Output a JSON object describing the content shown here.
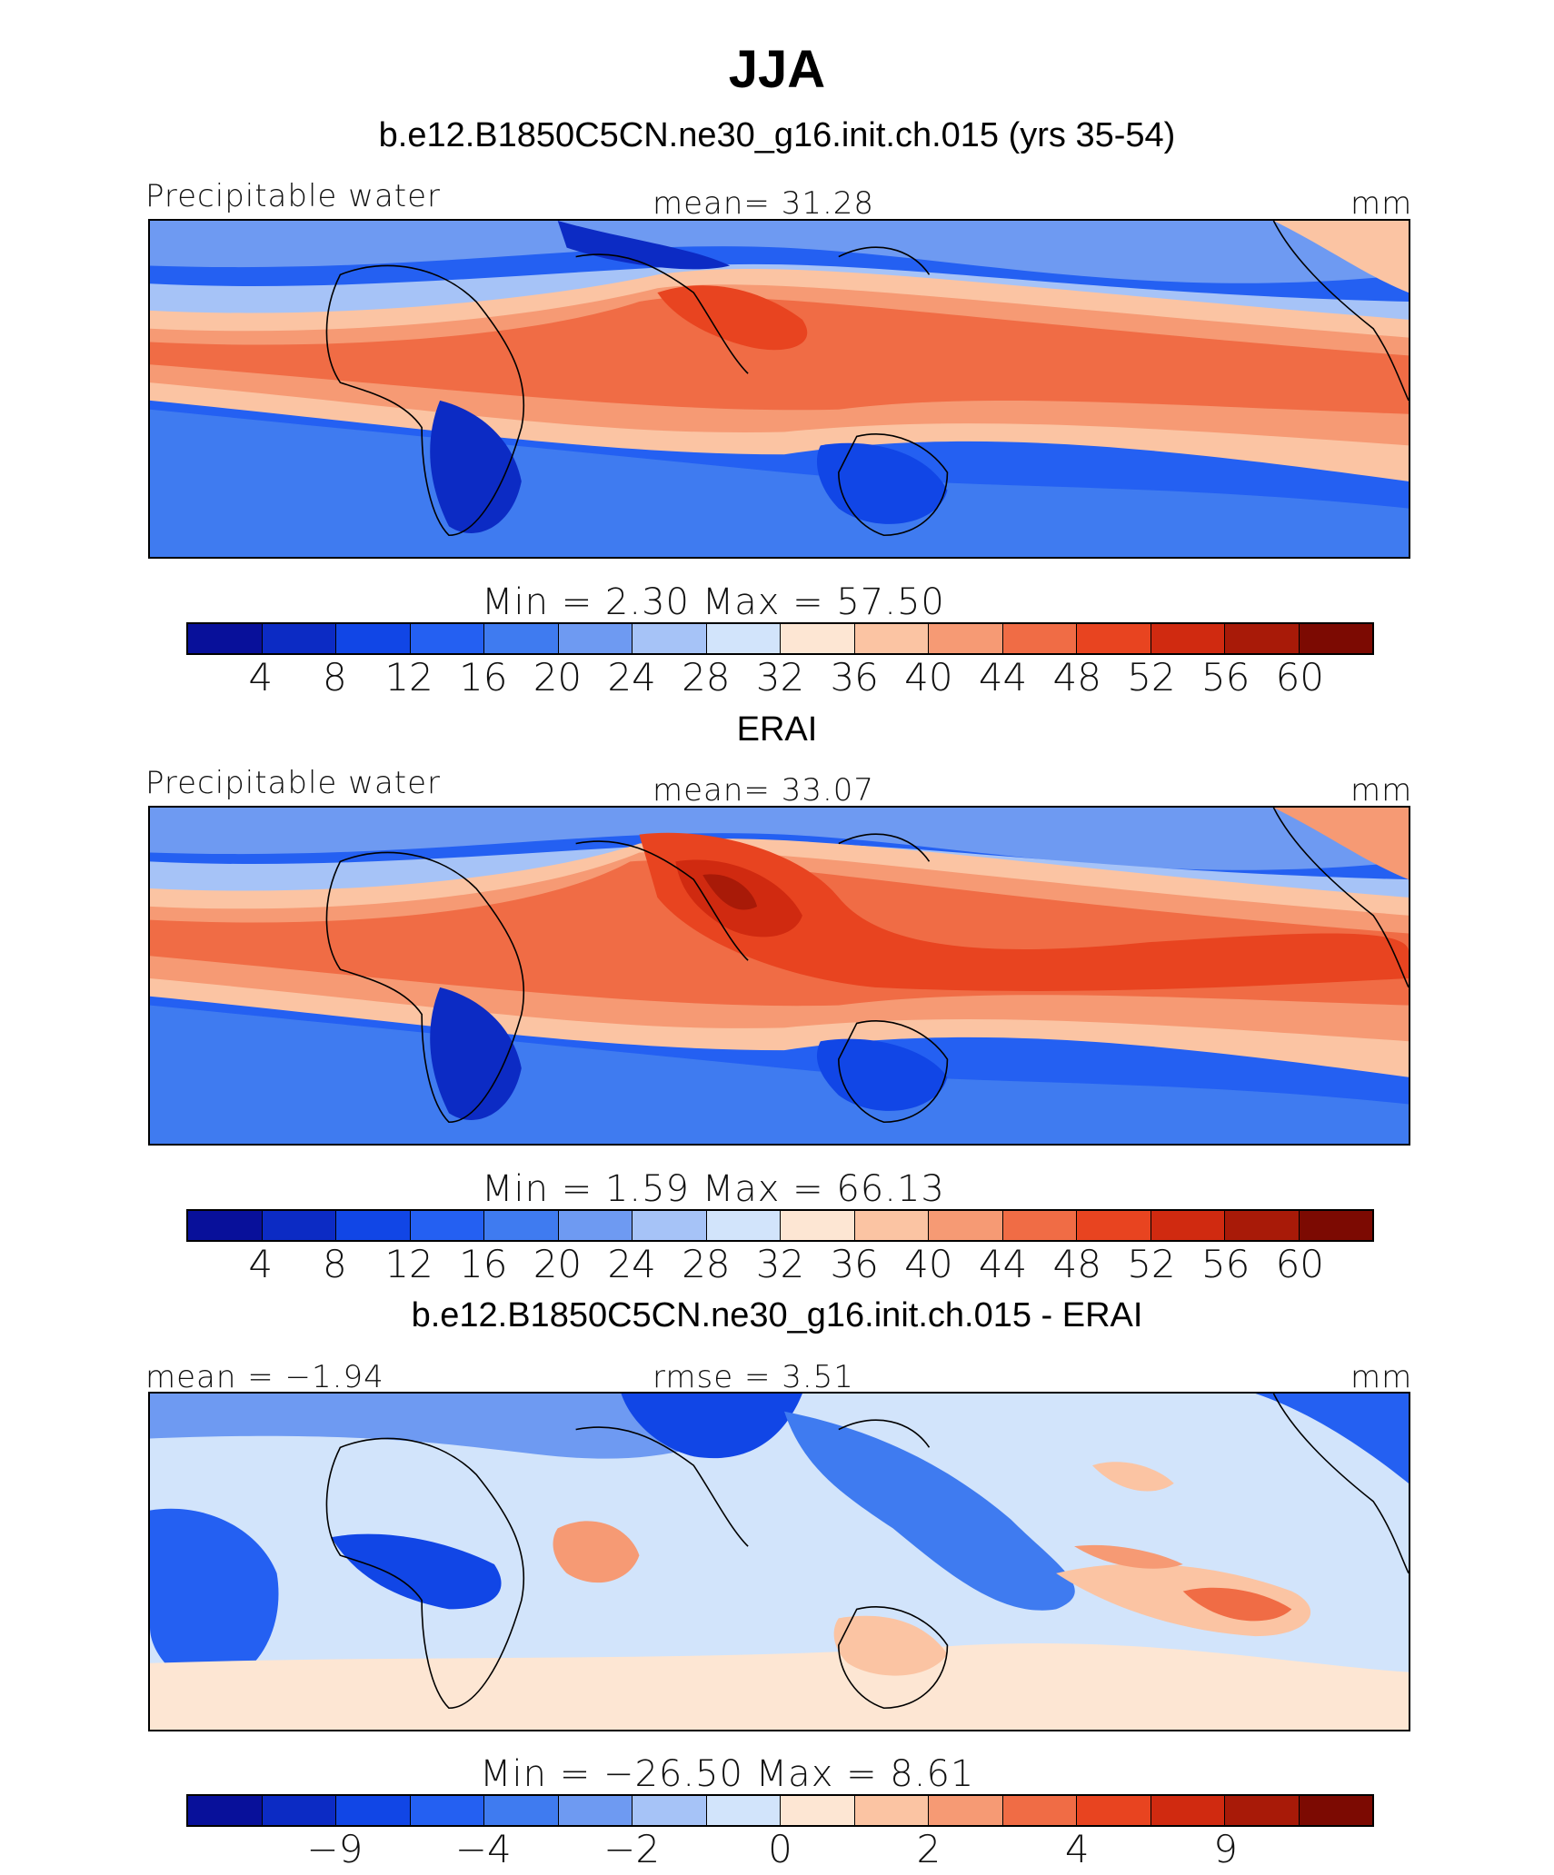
{
  "title": "JJA",
  "palette": [
    "#08109a",
    "#0c2bc4",
    "#1146e6",
    "#2460f2",
    "#3f7bf0",
    "#6e9af2",
    "#a6c3f7",
    "#d2e4fb",
    "#fde6d3",
    "#fbc4a3",
    "#f69a74",
    "#f06c45",
    "#e84420",
    "#d02a10",
    "#a81a08",
    "#7c0a02"
  ],
  "panels": [
    {
      "title": "b.e12.B1850C5CN.ne30_g16.init.ch.015 (yrs 35-54)",
      "left_label": "Precipitable  water",
      "center_label": "mean=   31.28",
      "units": "mm",
      "min_max": "Min  =      2.30  Max  =    57.50",
      "tick_labels": [
        "4",
        "8",
        "12",
        "16",
        "20",
        "24",
        "28",
        "32",
        "36",
        "40",
        "44",
        "48",
        "52",
        "56",
        "60"
      ]
    },
    {
      "title": "ERAI",
      "left_label": "Precipitable  water",
      "center_label": "mean=   33.07",
      "units": "mm",
      "min_max": "Min  =      1.59  Max  =    66.13",
      "tick_labels": [
        "4",
        "8",
        "12",
        "16",
        "20",
        "24",
        "28",
        "32",
        "36",
        "40",
        "44",
        "48",
        "52",
        "56",
        "60"
      ]
    },
    {
      "title": "b.e12.B1850C5CN.ne30_g16.init.ch.015 - ERAI",
      "left_label": "mean  =   −1.94",
      "center_label": "rmse  =     3.51",
      "units": "mm",
      "min_max": "Min  =  −26.50  Max  =     8.61",
      "tick_labels": [
        "−9",
        "−4",
        "−2",
        "0",
        "2",
        "4",
        "9"
      ]
    }
  ]
}
